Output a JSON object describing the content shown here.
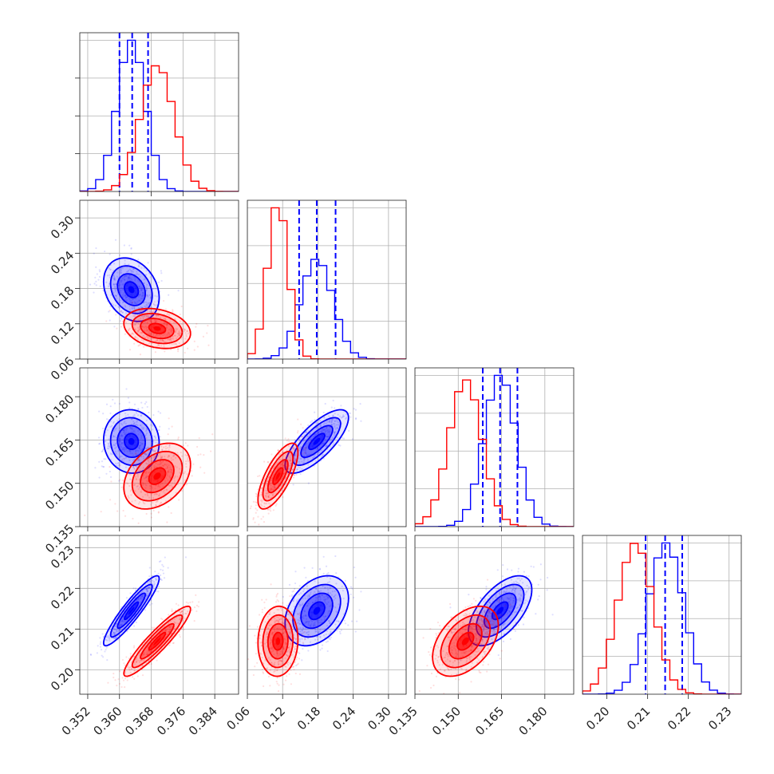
{
  "chart_data": {
    "type": "corner",
    "grid": true,
    "parameters": [
      {
        "ticks": [
          0.352,
          0.36,
          0.368,
          0.376,
          0.384
        ],
        "tick_labels": [
          "0.352",
          "0.360",
          "0.368",
          "0.376",
          "0.384"
        ],
        "range": [
          0.35,
          0.39
        ]
      },
      {
        "ticks": [
          0.06,
          0.12,
          0.18,
          0.24,
          0.3
        ],
        "tick_labels": [
          "0.06",
          "0.12",
          "0.18",
          "0.24",
          "0.30"
        ],
        "range": [
          0.06,
          0.33
        ]
      },
      {
        "ticks": [
          0.135,
          0.15,
          0.165,
          0.18
        ],
        "tick_labels": [
          "0.135",
          "0.150",
          "0.165",
          "0.180"
        ],
        "range": [
          0.135,
          0.19
        ]
      },
      {
        "ticks": [
          0.2,
          0.21,
          0.22,
          0.23
        ],
        "tick_labels": [
          "0.20",
          "0.21",
          "0.22",
          "0.23"
        ],
        "range": [
          0.194,
          0.233
        ]
      }
    ],
    "series": [
      {
        "color": "#0000ff",
        "mean": [
          0.363,
          0.178,
          0.1645,
          0.2145
        ],
        "sigma": [
          0.0035,
          0.027,
          0.0055,
          0.0043
        ],
        "quantiles": [
          [
            0.36,
            0.3632,
            0.3672
          ],
          [
            0.148,
            0.178,
            0.21
          ],
          [
            0.1585,
            0.1645,
            0.1705
          ],
          [
            0.2095,
            0.2143,
            0.2185
          ]
        ],
        "correlations": [
          [
            0,
            1,
            -0.25
          ],
          [
            0,
            2,
            -0.05
          ],
          [
            0,
            3,
            0.92
          ],
          [
            1,
            2,
            0.75
          ],
          [
            1,
            3,
            0.35
          ],
          [
            2,
            3,
            0.6
          ]
        ]
      },
      {
        "color": "#ff0000",
        "mean": [
          0.3695,
          0.112,
          0.1525,
          0.207
        ],
        "sigma": [
          0.0042,
          0.017,
          0.0057,
          0.0043
        ],
        "quantiles": [],
        "correlations": [
          [
            0,
            1,
            -0.25
          ],
          [
            0,
            2,
            0.35
          ],
          [
            0,
            3,
            0.92
          ],
          [
            1,
            2,
            0.72
          ],
          [
            1,
            3,
            0.05
          ],
          [
            2,
            3,
            0.45
          ]
        ]
      }
    ],
    "histogram_bins": 20,
    "contour_levels_sigma": [
      0.5,
      1.0,
      1.5,
      2.0
    ],
    "scatter_points_per_series": 450
  }
}
